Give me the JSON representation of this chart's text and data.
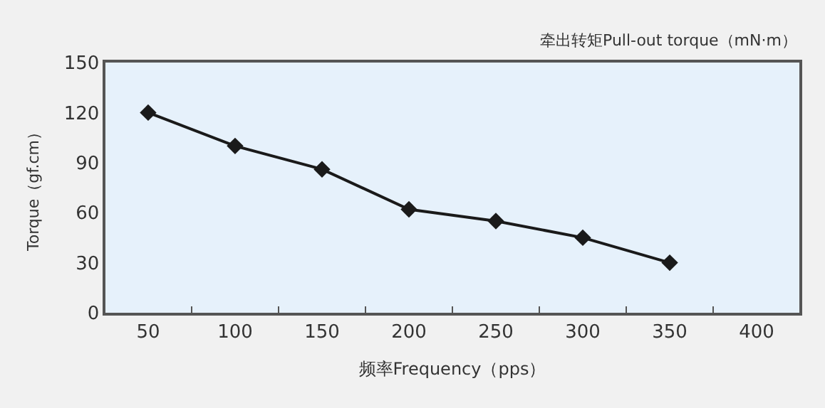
{
  "chart_data": {
    "type": "line",
    "annotations": [
      "牵出转矩Pull-out torque（mN·m）"
    ],
    "xlabel": "频率Frequency（pps）",
    "ylabel": "Torque（gf.cm）",
    "categories": [
      "50",
      "100",
      "150",
      "200",
      "250",
      "300",
      "350",
      "400"
    ],
    "series": [
      {
        "color": "#1a1a1a",
        "values": [
          120,
          100,
          86,
          62,
          55,
          45,
          30,
          null
        ]
      }
    ],
    "ylim": [
      0,
      150
    ],
    "yticks": [
      0,
      30,
      60,
      90,
      120,
      150
    ],
    "grid": false,
    "legend": false,
    "marker": "diamond",
    "line_style": "solid"
  }
}
